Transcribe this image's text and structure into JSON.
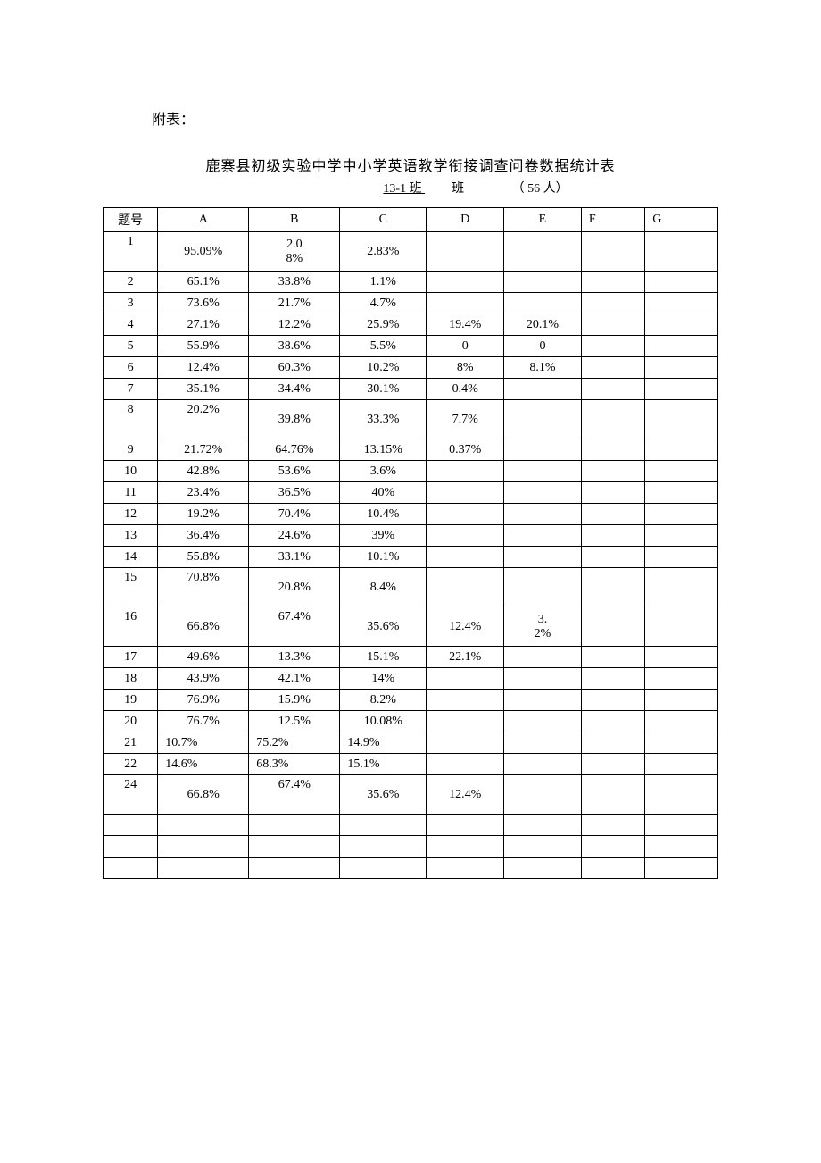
{
  "header_label": "附表：",
  "title": "鹿寨县初级实验中学中小学英语教学衔接调查问卷数据统计表",
  "subtitle": {
    "class_name": "  13-1 班    ",
    "class_suffix": "班",
    "people": "（  56  人）"
  },
  "table": {
    "columns": [
      "题号",
      "A",
      "B",
      "C",
      "D",
      "E",
      "F",
      "G"
    ],
    "rows": [
      {
        "q": "1",
        "a": "95.09%",
        "b": "2.08%",
        "c": "2.83%",
        "d": "",
        "e": "",
        "f": "",
        "g": "",
        "tall": true,
        "b_wrap": true
      },
      {
        "q": "2",
        "a": "65.1%",
        "b": "33.8%",
        "c": "1.1%",
        "d": "",
        "e": "",
        "f": "",
        "g": ""
      },
      {
        "q": "3",
        "a": "73.6%",
        "b": "21.7%",
        "c": "4.7%",
        "d": "",
        "e": "",
        "f": "",
        "g": ""
      },
      {
        "q": "4",
        "a": "27.1%",
        "b": "12.2%",
        "c": "25.9%",
        "d": "19.4%",
        "e": "20.1%",
        "f": "",
        "g": ""
      },
      {
        "q": "5",
        "a": "55.9%",
        "b": "38.6%",
        "c": "5.5%",
        "d": "0",
        "e": "0",
        "f": "",
        "g": ""
      },
      {
        "q": "6",
        "a": "12.4%",
        "b": "60.3%",
        "c": "10.2%",
        "d": "8%",
        "e": "8.1%",
        "f": "",
        "g": ""
      },
      {
        "q": "7",
        "a": "35.1%",
        "b": "34.4%",
        "c": "30.1%",
        "d": "0.4%",
        "e": "",
        "f": "",
        "g": ""
      },
      {
        "q": "8",
        "a": "20.2%",
        "b": "39.8%",
        "c": "33.3%",
        "d": "7.7%",
        "e": "",
        "f": "",
        "g": "",
        "tall": true,
        "a_top": true
      },
      {
        "q": "9",
        "a": "21.72%",
        "b": "64.76%",
        "c": "13.15%",
        "d": "0.37%",
        "e": "",
        "f": "",
        "g": ""
      },
      {
        "q": "10",
        "a": "42.8%",
        "b": "53.6%",
        "c": "3.6%",
        "d": "",
        "e": "",
        "f": "",
        "g": ""
      },
      {
        "q": "11",
        "a": "23.4%",
        "b": "36.5%",
        "c": "40%",
        "d": "",
        "e": "",
        "f": "",
        "g": ""
      },
      {
        "q": "12",
        "a": "19.2%",
        "b": "70.4%",
        "c": "10.4%",
        "d": "",
        "e": "",
        "f": "",
        "g": ""
      },
      {
        "q": "13",
        "a": "36.4%",
        "b": "24.6%",
        "c": "39%",
        "d": "",
        "e": "",
        "f": "",
        "g": ""
      },
      {
        "q": "14",
        "a": "55.8%",
        "b": "33.1%",
        "c": "10.1%",
        "d": "",
        "e": "",
        "f": "",
        "g": ""
      },
      {
        "q": "15",
        "a": "70.8%",
        "b": "20.8%",
        "c": "8.4%",
        "d": "",
        "e": "",
        "f": "",
        "g": "",
        "tall": true,
        "a_top": true
      },
      {
        "q": "16",
        "a": "66.8%",
        "b": "67.4%",
        "c": "35.6%",
        "d": "12.4%",
        "e": "3.2%",
        "f": "",
        "g": "",
        "tall": true,
        "b_top": true,
        "e_wrap": true
      },
      {
        "q": "17",
        "a": "49.6%",
        "b": "13.3%",
        "c": "15.1%",
        "d": "22.1%",
        "e": "",
        "f": "",
        "g": ""
      },
      {
        "q": "18",
        "a": "43.9%",
        "b": "42.1%",
        "c": "14%",
        "d": "",
        "e": "",
        "f": "",
        "g": ""
      },
      {
        "q": "19",
        "a": "76.9%",
        "b": "15.9%",
        "c": "8.2%",
        "d": "",
        "e": "",
        "f": "",
        "g": ""
      },
      {
        "q": "20",
        "a": "76.7%",
        "b": "12.5%",
        "c": "10.08%",
        "d": "",
        "e": "",
        "f": "",
        "g": ""
      },
      {
        "q": "21",
        "a": "10.7%",
        "b": "75.2%",
        "c": "14.9%",
        "d": "",
        "e": "",
        "f": "",
        "g": "",
        "left_align": true
      },
      {
        "q": "22",
        "a": "14.6%",
        "b": "68.3%",
        "c": "15.1%",
        "d": "",
        "e": "",
        "f": "",
        "g": "",
        "left_align": true
      },
      {
        "q": "24",
        "a": "66.8%",
        "b": "67.4%",
        "c": "35.6%",
        "d": "12.4%",
        "e": "",
        "f": "",
        "g": "",
        "tall": true,
        "b_top": true
      },
      {
        "q": "",
        "a": "",
        "b": "",
        "c": "",
        "d": "",
        "e": "",
        "f": "",
        "g": ""
      },
      {
        "q": "",
        "a": "",
        "b": "",
        "c": "",
        "d": "",
        "e": "",
        "f": "",
        "g": ""
      },
      {
        "q": "",
        "a": "",
        "b": "",
        "c": "",
        "d": "",
        "e": "",
        "f": "",
        "g": ""
      }
    ]
  }
}
